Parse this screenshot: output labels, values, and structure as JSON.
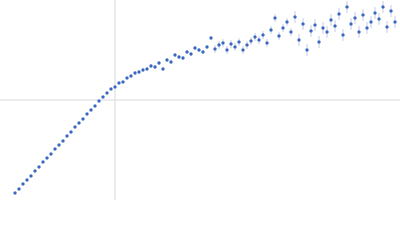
{
  "chart_data": {
    "type": "scatter",
    "xlim": [
      0,
      400
    ],
    "ylim": [
      0,
      200
    ],
    "reference_lines": {
      "x": 115,
      "y": 100
    },
    "x": [
      15,
      19,
      23,
      27,
      31,
      35,
      39,
      43,
      47,
      51,
      55,
      59,
      63,
      67,
      71,
      75,
      79,
      83,
      87,
      91,
      95,
      99,
      103,
      107,
      111,
      115,
      119,
      123,
      127,
      131,
      135,
      139,
      143,
      147,
      151,
      155,
      159,
      163,
      167,
      171,
      175,
      179,
      183,
      187,
      191,
      195,
      199,
      203,
      207,
      211,
      215,
      219,
      223,
      227,
      231,
      235,
      239,
      243,
      247,
      251,
      255,
      259,
      263,
      267,
      271,
      275,
      279,
      283,
      287,
      291,
      295,
      299,
      303,
      307,
      311,
      315,
      319,
      323,
      327,
      331,
      335,
      339,
      343,
      347,
      351,
      355,
      359,
      363,
      367,
      371,
      375,
      379,
      383,
      387,
      391,
      395
    ],
    "series": [
      {
        "color": "#3a67c0",
        "error_color": "#b4c2df",
        "values": [
          7,
          11,
          16,
          20,
          24,
          29,
          33,
          38,
          42,
          46,
          51,
          55,
          59,
          64,
          68,
          73,
          77,
          81,
          86,
          90,
          94,
          99,
          103,
          107,
          111,
          113,
          117,
          118,
          122,
          124,
          127,
          128,
          130,
          131,
          134,
          133,
          137,
          131,
          140,
          138,
          145,
          143,
          142,
          148,
          146,
          152,
          150,
          148,
          153,
          162,
          151,
          155,
          157,
          150,
          156,
          153,
          158,
          150,
          155,
          159,
          163,
          160,
          165,
          157,
          170,
          182,
          164,
          172,
          178,
          168,
          183,
          160,
          176,
          150,
          169,
          175,
          158,
          172,
          168,
          180,
          174,
          186,
          165,
          193,
          176,
          182,
          168,
          185,
          172,
          178,
          187,
          181,
          193,
          173,
          189,
          178
        ],
        "errors": [
          1,
          1,
          1,
          1,
          1,
          1,
          1,
          1,
          1,
          1,
          1,
          1,
          1,
          1,
          1,
          1,
          1,
          1,
          1,
          1,
          1,
          1,
          1,
          1,
          1,
          1,
          1,
          1,
          1,
          1,
          2,
          2,
          2,
          2,
          2,
          2,
          2,
          2,
          2,
          2,
          2,
          2,
          2,
          2,
          2,
          2,
          2,
          2,
          2,
          2,
          4,
          4,
          4,
          4,
          4,
          4,
          4,
          4,
          4,
          4,
          4,
          4,
          4,
          4,
          4,
          4,
          4,
          4,
          4,
          4,
          6,
          6,
          6,
          6,
          6,
          6,
          6,
          6,
          6,
          6,
          6,
          6,
          6,
          6,
          6,
          6,
          6,
          6,
          6,
          6,
          6,
          6,
          6,
          6,
          6,
          6
        ]
      }
    ]
  }
}
